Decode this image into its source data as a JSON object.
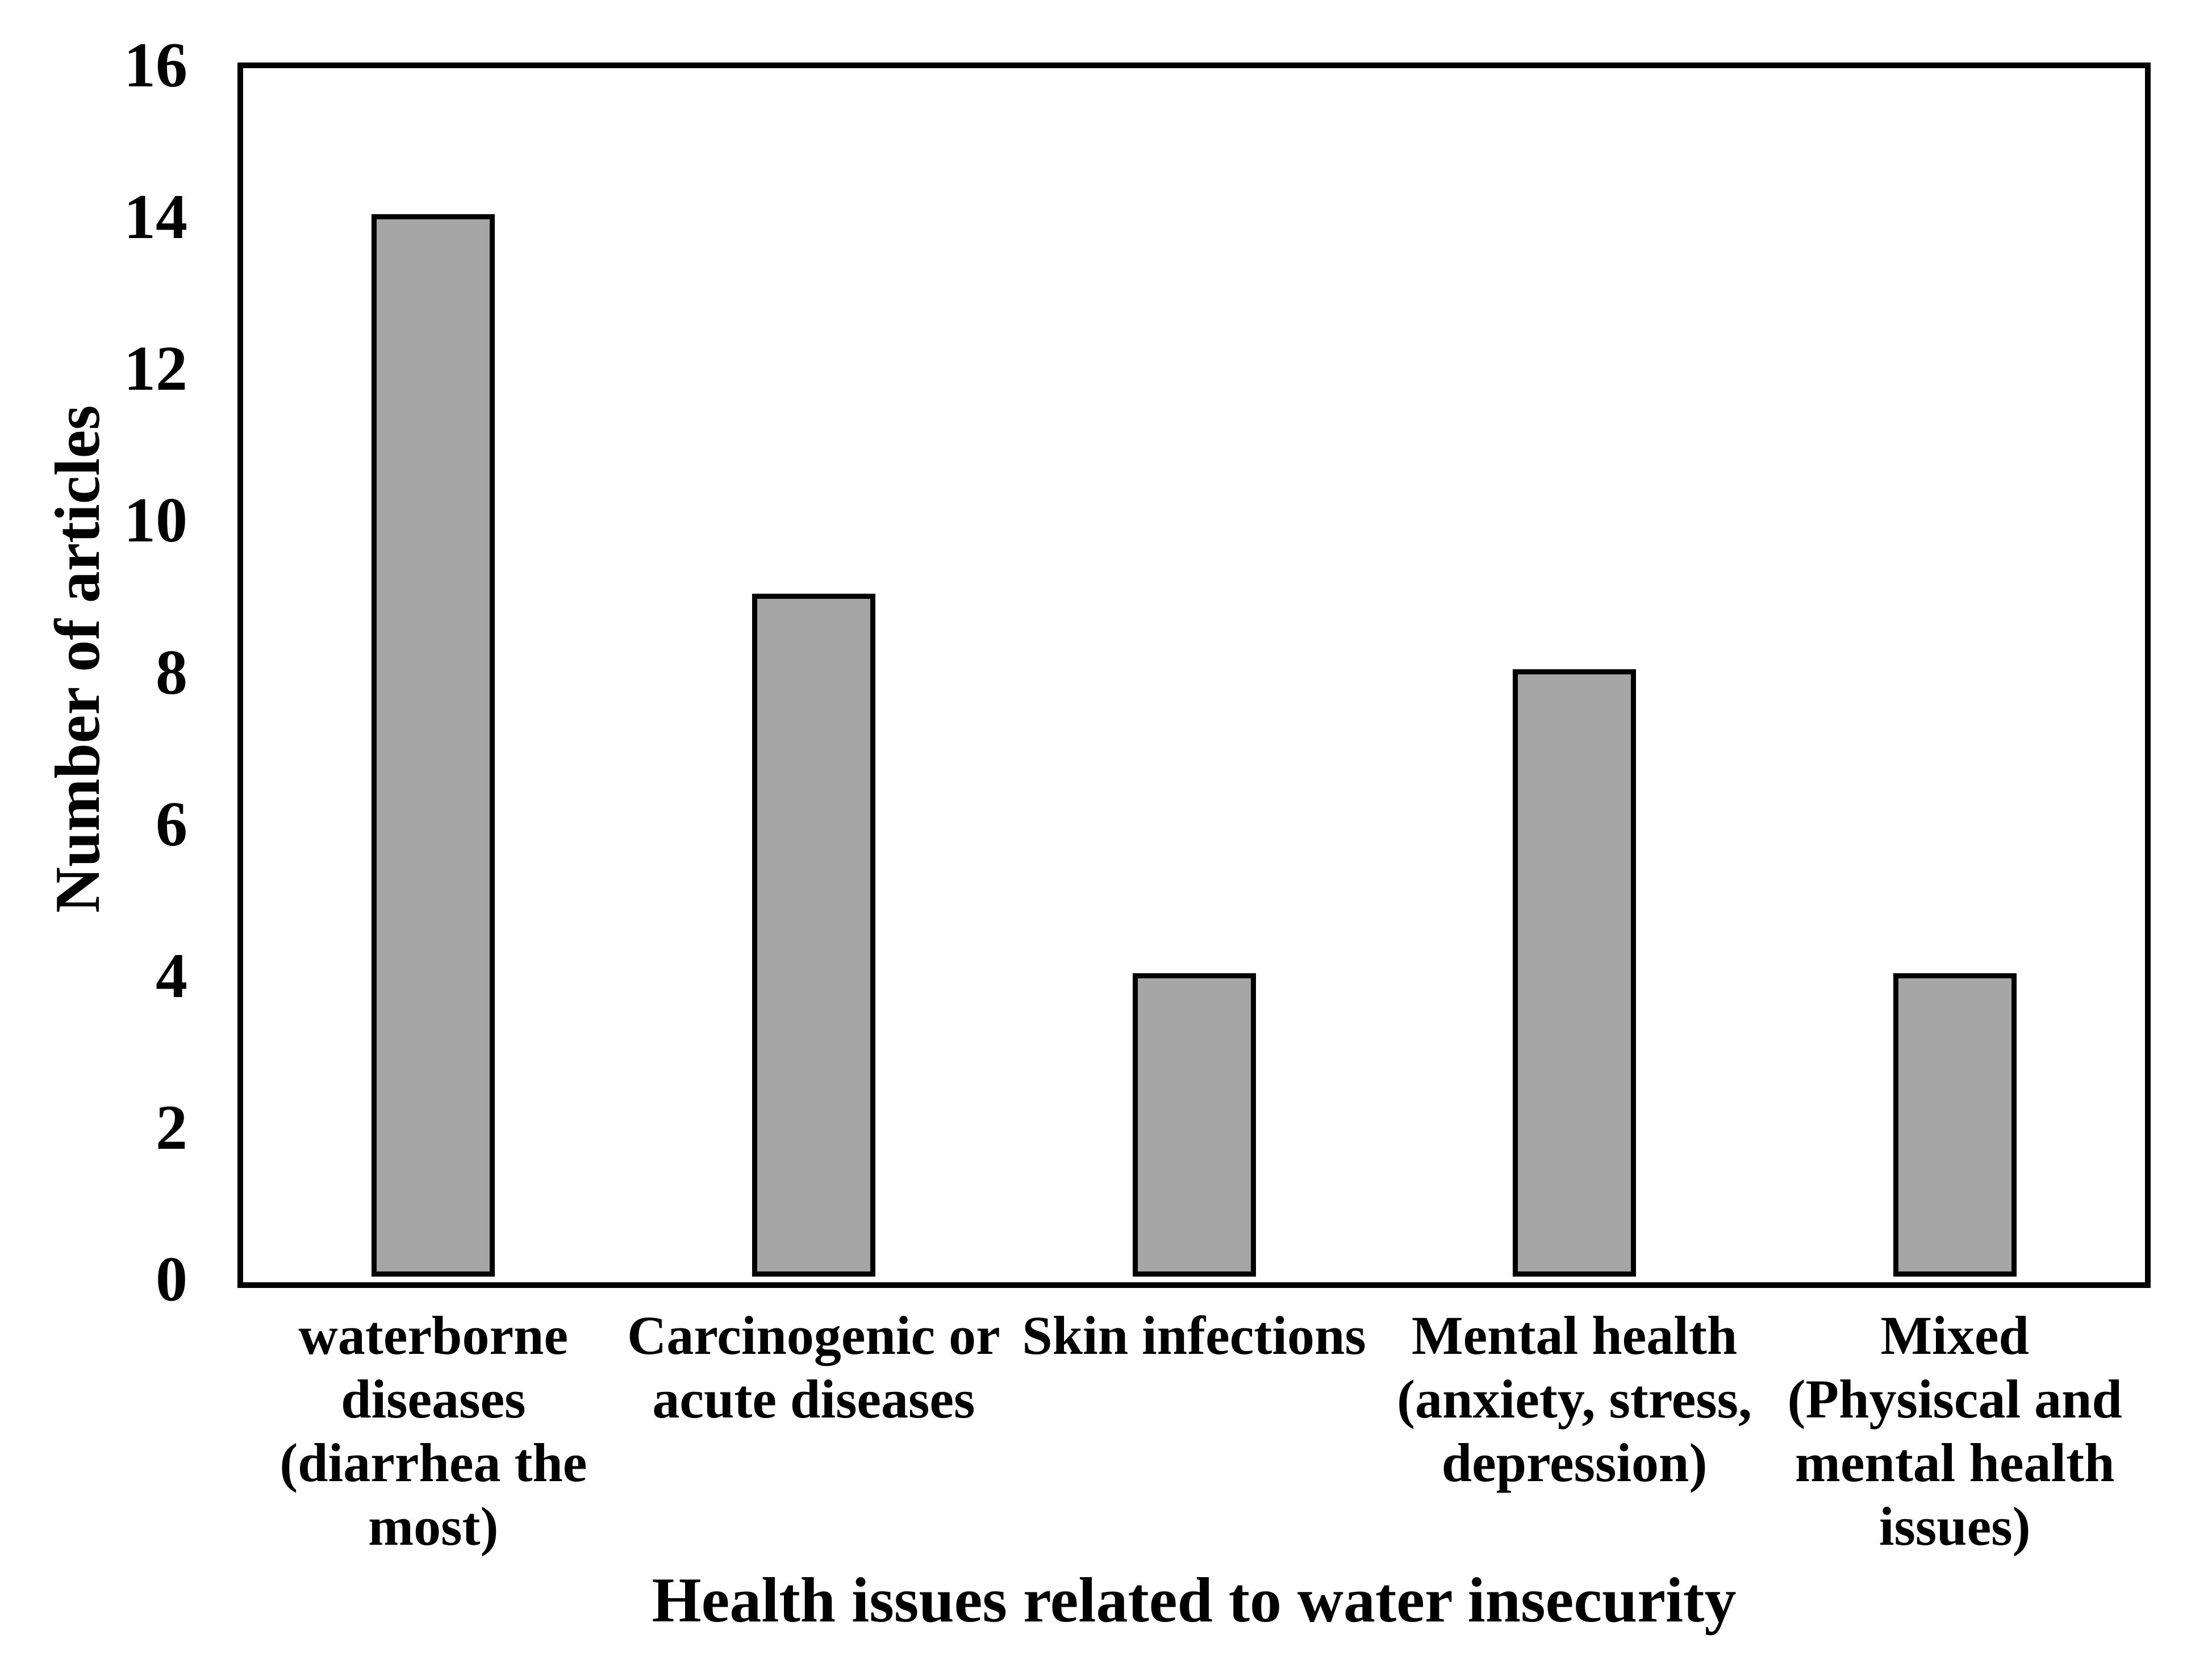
{
  "chart_data": {
    "type": "bar",
    "title": "",
    "xlabel": "Health issues related to water insecurity",
    "ylabel": "Number of articles",
    "ylim": [
      0,
      16
    ],
    "yticks": [
      0,
      2,
      4,
      6,
      8,
      10,
      12,
      14,
      16
    ],
    "grid": "off",
    "legend": "none",
    "categories": [
      {
        "label": "waterborne diseases (diarrhea the most)",
        "lines": [
          "waterborne",
          "diseases",
          "(diarrhea the",
          "most)"
        ]
      },
      {
        "label": "Carcinogenic or acute diseases",
        "lines": [
          "Carcinogenic or",
          "acute diseases"
        ]
      },
      {
        "label": "Skin infections",
        "lines": [
          "Skin infections"
        ]
      },
      {
        "label": "Mental health (anxiety, stress, depression)",
        "lines": [
          "Mental health",
          "(anxiety, stress,",
          "depression)"
        ]
      },
      {
        "label": "Mixed (Physiscal and mental health issues)",
        "lines": [
          "Mixed",
          "(Physiscal and",
          "mental health",
          "issues)"
        ]
      }
    ],
    "values": [
      14,
      9,
      4,
      8,
      4
    ],
    "colors": {
      "bar_fill": "#a6a6a6",
      "bar_border": "#000000",
      "axis": "#000000",
      "text": "#000000",
      "background": "#ffffff"
    }
  }
}
